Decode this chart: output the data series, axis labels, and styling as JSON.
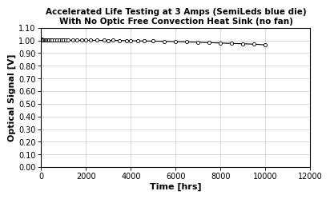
{
  "title_line1": "Accelerated Life Testing at 3 Amps (SemiLeds blue die)",
  "title_line2": "With No Optic Free Convection Heat Sink (no fan)",
  "xlabel": "Time [hrs]",
  "ylabel": "Optical Signal [V]",
  "xlim": [
    0,
    12000
  ],
  "ylim": [
    0.0,
    1.1
  ],
  "xticks": [
    0,
    2000,
    4000,
    6000,
    8000,
    10000,
    12000
  ],
  "yticks": [
    0.0,
    0.1,
    0.2,
    0.3,
    0.4,
    0.5,
    0.6,
    0.7,
    0.8,
    0.9,
    1.0,
    1.1
  ],
  "data_x": [
    0,
    30,
    60,
    100,
    150,
    200,
    250,
    300,
    350,
    400,
    500,
    600,
    700,
    800,
    900,
    1000,
    1100,
    1200,
    1400,
    1600,
    1800,
    2000,
    2200,
    2500,
    2800,
    3000,
    3200,
    3500,
    3800,
    4000,
    4300,
    4600,
    5000,
    5500,
    6000,
    6500,
    7000,
    7500,
    8000,
    8500,
    9000,
    9500,
    10000
  ],
  "data_y": [
    1.005,
    1.008,
    1.007,
    1.006,
    1.005,
    1.004,
    1.003,
    1.006,
    1.004,
    1.005,
    1.003,
    1.004,
    1.003,
    1.002,
    1.003,
    1.002,
    1.002,
    1.001,
    1.002,
    1.001,
    1.001,
    1.001,
    1.002,
    1.001,
    1.001,
    1.0,
    1.001,
    1.0,
    0.999,
    0.998,
    0.997,
    0.996,
    0.995,
    0.993,
    0.991,
    0.989,
    0.986,
    0.983,
    0.98,
    0.977,
    0.974,
    0.971,
    0.965
  ],
  "line_color": "#000000",
  "marker_color": "#ffffff",
  "marker_edge_color": "#000000",
  "background_color": "#ffffff",
  "title_fontsize": 7.5,
  "label_fontsize": 8,
  "tick_fontsize": 7,
  "grid_color": "#cccccc"
}
